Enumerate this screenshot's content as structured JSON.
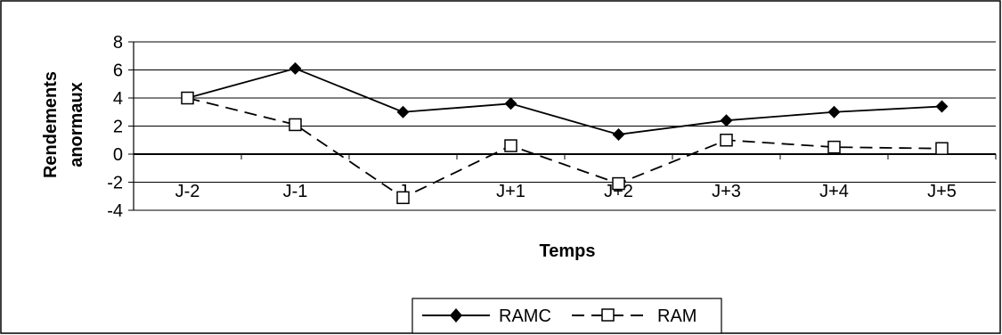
{
  "chart_data": {
    "type": "line",
    "categories": [
      "J-2",
      "J-1",
      "J",
      "J+1",
      "J+2",
      "J+3",
      "J+4",
      "J+5"
    ],
    "series": [
      {
        "name": "RAMC",
        "values": [
          4.0,
          6.1,
          3.0,
          3.6,
          1.4,
          2.4,
          3.0,
          3.4
        ],
        "line_style": "solid",
        "marker": "filled-diamond",
        "color": "#000000"
      },
      {
        "name": "RAM",
        "values": [
          4.0,
          2.1,
          -3.1,
          0.6,
          -2.1,
          1.0,
          0.5,
          0.4
        ],
        "line_style": "dashed",
        "marker": "open-square",
        "color": "#000000"
      }
    ],
    "title": "",
    "xlabel": "Temps",
    "ylabel": "Rendements anormaux",
    "ylim": [
      -4,
      8
    ],
    "yticks": [
      8,
      6,
      4,
      2,
      0,
      -2,
      -4
    ],
    "grid": true,
    "legend_position": "bottom-center"
  },
  "labels": {
    "ylabel_line1": "Rendements",
    "ylabel_line2": "anormaux"
  }
}
